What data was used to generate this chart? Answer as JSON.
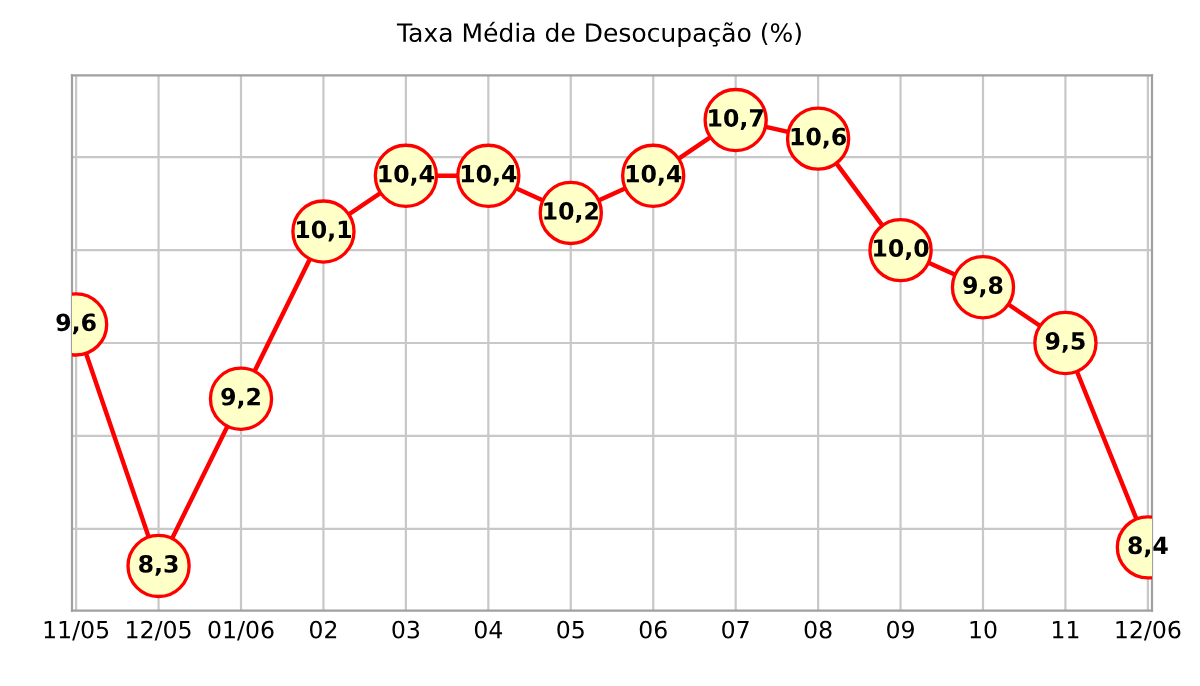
{
  "chart_data": {
    "type": "line",
    "title": "Taxa Média de Desocupação (%)",
    "categories": [
      "11/05",
      "12/05",
      "01/06",
      "02",
      "03",
      "04",
      "05",
      "06",
      "07",
      "08",
      "09",
      "10",
      "11",
      "12/06"
    ],
    "series": [
      {
        "color": "#ff0000",
        "values": [
          9.6,
          8.3,
          9.2,
          10.1,
          10.4,
          10.4,
          10.2,
          10.4,
          10.7,
          10.6,
          10.0,
          9.8,
          9.5,
          8.4
        ],
        "value_labels": [
          "9,6",
          "8,3",
          "9,2",
          "10,1",
          "10,4",
          "10,4",
          "10,2",
          "10,4",
          "10,7",
          "10,6",
          "10,0",
          "9,8",
          "9,5",
          "8,4"
        ]
      }
    ],
    "marker": "circle",
    "line_style": "solid",
    "grid": true,
    "legend": false,
    "tick_labels": "x"
  }
}
